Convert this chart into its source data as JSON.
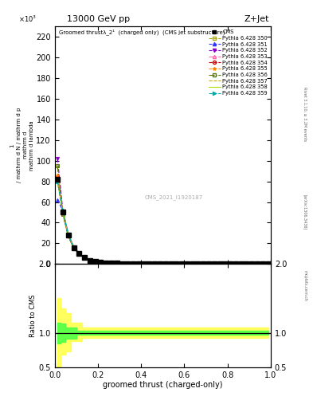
{
  "title_top": "13000 GeV pp",
  "title_right": "Z+Jet",
  "plot_title": "Groomed thrustλ_2¹  (charged only)  (CMS jet substructure)",
  "xlabel": "groomed thrust (charged-only)",
  "ylabel_main_parts": [
    "mathrm d N",
    "mathrm d p",
    "mathrm d",
    "mathrm d lambda"
  ],
  "ylabel_ratio": "Ratio to CMS",
  "watermark": "CMS_2021_I1920187",
  "rivet_text": "Rivet 3.1.10, ≥ 3.2M events",
  "arxiv_text": "[arXiv:1306.3436]",
  "mcplots_text": "mcplots.cern.ch",
  "series": [
    {
      "label": "CMS",
      "color": "#000000",
      "marker": "s",
      "filled": true,
      "linestyle": "none"
    },
    {
      "label": "Pythia 6.428 350",
      "color": "#aaaa00",
      "marker": "s",
      "filled": false,
      "linestyle": "--"
    },
    {
      "label": "Pythia 6.428 351",
      "color": "#3333ff",
      "marker": "^",
      "filled": true,
      "linestyle": "--"
    },
    {
      "label": "Pythia 6.428 352",
      "color": "#8800cc",
      "marker": "v",
      "filled": true,
      "linestyle": "--"
    },
    {
      "label": "Pythia 6.428 353",
      "color": "#ff66aa",
      "marker": "^",
      "filled": false,
      "linestyle": "-."
    },
    {
      "label": "Pythia 6.428 354",
      "color": "#cc0000",
      "marker": "o",
      "filled": false,
      "linestyle": "--"
    },
    {
      "label": "Pythia 6.428 355",
      "color": "#ff8800",
      "marker": "*",
      "filled": true,
      "linestyle": "--"
    },
    {
      "label": "Pythia 6.428 356",
      "color": "#557700",
      "marker": "s",
      "filled": false,
      "linestyle": "-."
    },
    {
      "label": "Pythia 6.428 357",
      "color": "#ccaa00",
      "marker": "none",
      "filled": false,
      "linestyle": "--"
    },
    {
      "label": "Pythia 6.428 358",
      "color": "#aadd00",
      "marker": "none",
      "filled": false,
      "linestyle": "-"
    },
    {
      "label": "Pythia 6.428 359",
      "color": "#00aaaa",
      "marker": ">",
      "filled": true,
      "linestyle": "--"
    }
  ],
  "main_ylim": [
    0,
    230
  ],
  "main_yticks": [
    0,
    20,
    40,
    60,
    80,
    100,
    120,
    140,
    160,
    180,
    200,
    220
  ],
  "ratio_ylim": [
    0.5,
    2.0
  ],
  "ratio_yticks": [
    0.5,
    1.0,
    2.0
  ],
  "xlim": [
    0,
    1
  ],
  "ratio_band_yellow": {
    "color": "#ffff44",
    "alpha": 0.85
  },
  "ratio_band_green": {
    "color": "#44ff44",
    "alpha": 0.85
  },
  "background_color": "#ffffff"
}
